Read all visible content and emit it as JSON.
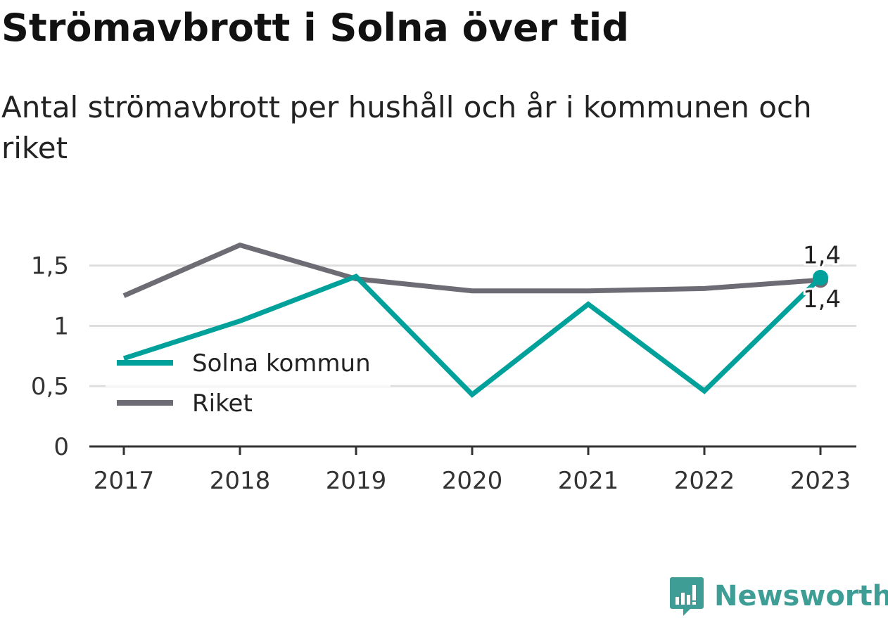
{
  "title": "Strömavbrott i Solna över tid",
  "subtitle": "Antal strömavbrott per hushåll och år i kommunen och riket",
  "brand": {
    "name": "Newsworthy",
    "icon": "newsworthy-logo-icon",
    "color": "#3e9e96"
  },
  "chart_data": {
    "type": "line",
    "x": [
      "2017",
      "2018",
      "2019",
      "2020",
      "2021",
      "2022",
      "2023"
    ],
    "series": [
      {
        "name": "Solna kommun",
        "color": "#00a19a",
        "values": [
          0.73,
          1.04,
          1.41,
          0.43,
          1.18,
          0.46,
          1.4
        ],
        "end_label": "1,4"
      },
      {
        "name": "Riket",
        "color": "#6d6c74",
        "values": [
          1.25,
          1.67,
          1.39,
          1.29,
          1.29,
          1.31,
          1.38
        ],
        "end_label": "1,4"
      }
    ],
    "yticks": [
      {
        "value": 0,
        "label": "0"
      },
      {
        "value": 0.5,
        "label": "0,5"
      },
      {
        "value": 1,
        "label": "1"
      },
      {
        "value": 1.5,
        "label": "1,5"
      }
    ],
    "ylim": [
      0,
      1.72
    ],
    "grid": true,
    "legend_position": "bottom-left",
    "xlabel": "",
    "ylabel": ""
  }
}
